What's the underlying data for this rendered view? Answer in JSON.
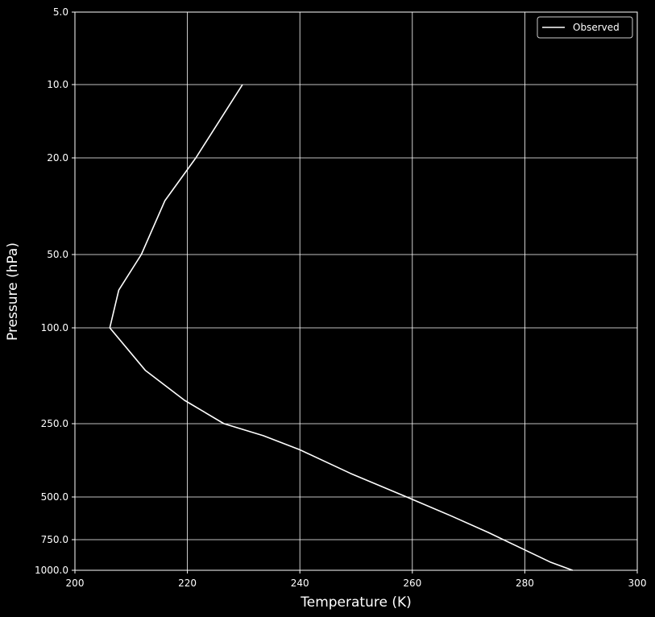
{
  "chart_data": {
    "type": "line",
    "xlabel": "Temperature (K)",
    "ylabel": "Pressure (hPa)",
    "xlim": [
      200,
      300
    ],
    "ylim": [
      1000,
      5
    ],
    "y_scale": "log",
    "y_inverted": true,
    "xticks": [
      200,
      220,
      240,
      260,
      280,
      300
    ],
    "xtick_labels": [
      "200",
      "220",
      "240",
      "260",
      "280",
      "300"
    ],
    "yticks": [
      5,
      10,
      20,
      50,
      100,
      250,
      500,
      750,
      1000
    ],
    "ytick_labels": [
      "5.0",
      "10.0",
      "20.0",
      "50.0",
      "100.0",
      "250.0",
      "500.0",
      "750.0",
      "1000.0"
    ],
    "grid": true,
    "legend_position": "top-right",
    "colors": {
      "background": "#000000",
      "line": "#ffffff",
      "grid": "#ffffff"
    },
    "series": [
      {
        "name": "Observed",
        "x": [
          288.5,
          284.5,
          273.5,
          267.0,
          259.0,
          249.0,
          240.0,
          233.5,
          226.5,
          219.5,
          212.5,
          206.2,
          207.8,
          211.8,
          216.0,
          221.5,
          229.8
        ],
        "y": [
          1000,
          925,
          700,
          600,
          500,
          400,
          320,
          280,
          250,
          200,
          150,
          100,
          70,
          50,
          30,
          20,
          10
        ]
      }
    ]
  }
}
